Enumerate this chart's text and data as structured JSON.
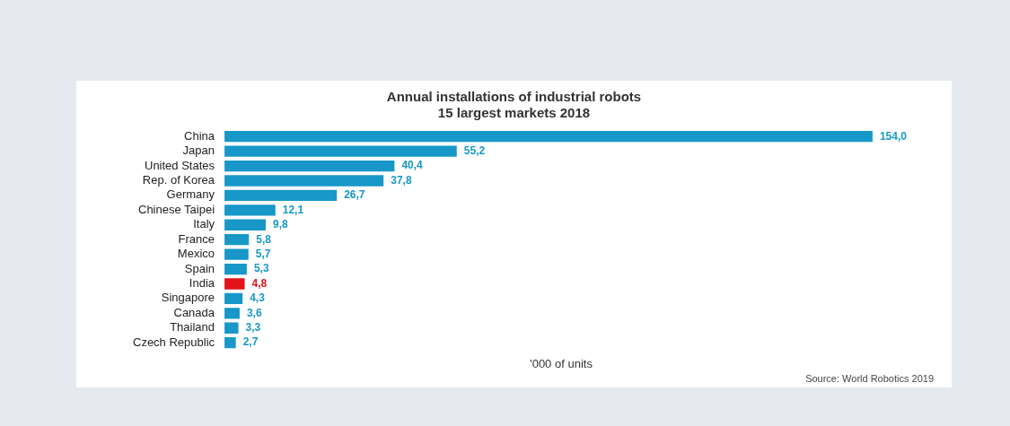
{
  "chart_data": {
    "type": "bar",
    "orientation": "horizontal",
    "title": "Annual installations of industrial robots",
    "subtitle": "15 largest markets 2018",
    "xlabel": "'000 of units",
    "categories": [
      "China",
      "Japan",
      "United States",
      "Rep. of Korea",
      "Germany",
      "Chinese Taipei",
      "Italy",
      "France",
      "Mexico",
      "Spain",
      "India",
      "Singapore",
      "Canada",
      "Thailand",
      "Czech Republic"
    ],
    "values": [
      154.0,
      55.2,
      40.4,
      37.8,
      26.7,
      12.1,
      9.8,
      5.8,
      5.7,
      5.3,
      4.8,
      4.3,
      3.6,
      3.3,
      2.7
    ],
    "value_labels": [
      "154,0",
      "55,2",
      "40,4",
      "37,8",
      "26,7",
      "12,1",
      "9,8",
      "5,8",
      "5,7",
      "5,3",
      "4,8",
      "4,3",
      "3,6",
      "3,3",
      "2,7"
    ],
    "colors": [
      "#1798c8",
      "#1798c8",
      "#1798c8",
      "#1798c8",
      "#1798c8",
      "#1798c8",
      "#1798c8",
      "#1798c8",
      "#1798c8",
      "#1798c8",
      "#e3121b",
      "#1798c8",
      "#1798c8",
      "#1798c8",
      "#1798c8"
    ],
    "tick_labels": "y",
    "grid": false,
    "legend": false,
    "annotations": [
      "Source: World Robotics 2019"
    ]
  }
}
